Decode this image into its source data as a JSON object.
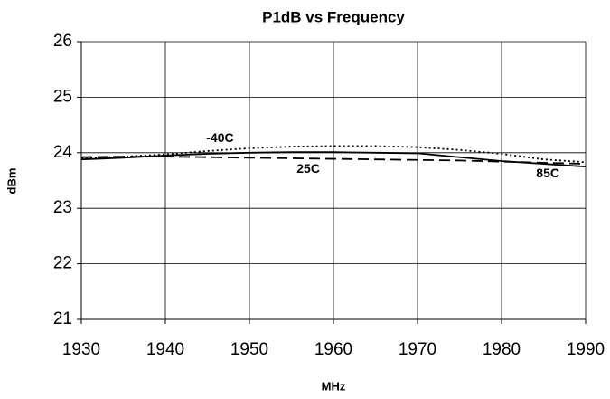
{
  "chart_data": {
    "type": "line",
    "title": "P1dB vs Frequency",
    "xlabel": "MHz",
    "ylabel": "dBm",
    "x": [
      1930,
      1935,
      1940,
      1945,
      1950,
      1955,
      1960,
      1965,
      1970,
      1975,
      1980,
      1985,
      1990
    ],
    "series": [
      {
        "name": "-40C",
        "color": "#000000",
        "dash": "dotted",
        "values": [
          23.9,
          23.93,
          23.97,
          24.03,
          24.08,
          24.11,
          24.12,
          24.12,
          24.1,
          24.05,
          23.98,
          23.88,
          23.83
        ]
      },
      {
        "name": "25C",
        "color": "#000000",
        "dash": "dashed",
        "values": [
          23.92,
          23.93,
          23.93,
          23.92,
          23.91,
          23.9,
          23.89,
          23.88,
          23.87,
          23.86,
          23.84,
          23.82,
          23.8
        ]
      },
      {
        "name": "85C",
        "color": "#000000",
        "dash": "solid",
        "values": [
          23.88,
          23.91,
          23.95,
          23.98,
          24.0,
          24.01,
          24.01,
          24.0,
          23.99,
          23.92,
          23.85,
          23.8,
          23.75
        ]
      }
    ],
    "xlim": [
      1930,
      1990
    ],
    "xticks": [
      1930,
      1940,
      1950,
      1960,
      1970,
      1980,
      1990
    ],
    "ylim": [
      21,
      26
    ],
    "yticks": [
      21,
      22,
      23,
      24,
      25,
      26
    ],
    "grid": true
  }
}
